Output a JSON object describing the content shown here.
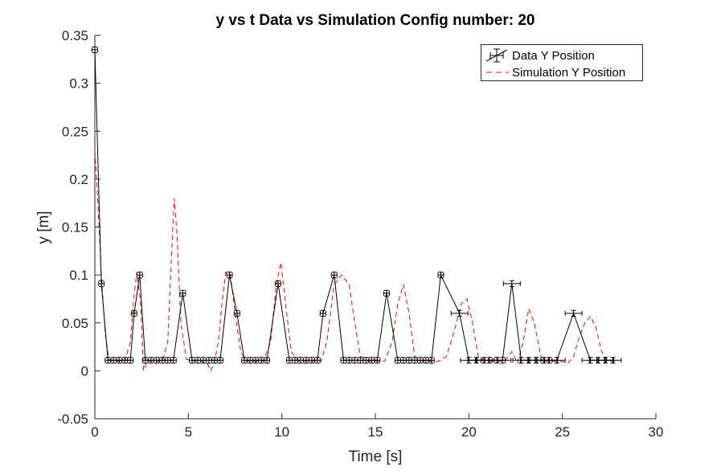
{
  "chart_data": {
    "type": "line",
    "title": "y vs t Data vs Simulation Config number: 20",
    "xlabel": "Time [s]",
    "ylabel": "y [m]",
    "xlim": [
      0,
      30
    ],
    "ylim": [
      -0.05,
      0.35
    ],
    "xticks": [
      0,
      5,
      10,
      15,
      20,
      25,
      30
    ],
    "xtick_labels": [
      "0",
      "5",
      "10",
      "15",
      "20",
      "25",
      "30"
    ],
    "yticks": [
      -0.05,
      0,
      0.05,
      0.1,
      0.15,
      0.2,
      0.25,
      0.3,
      0.35
    ],
    "ytick_labels": [
      "-0.05",
      "0",
      "0.05",
      "0.1",
      "0.15",
      "0.2",
      "0.25",
      "0.3",
      "0.35"
    ],
    "grid": false,
    "legend_position": "top-right",
    "series": [
      {
        "name": "Data Y Position",
        "style": "solid line with error bars",
        "color": "#000000",
        "x": [
          0.0,
          0.35,
          0.7,
          1.0,
          1.3,
          1.6,
          1.9,
          2.1,
          2.4,
          2.7,
          3.0,
          3.3,
          3.6,
          3.9,
          4.2,
          4.7,
          5.2,
          5.5,
          5.8,
          6.1,
          6.4,
          6.7,
          7.2,
          7.6,
          8.0,
          8.3,
          8.6,
          8.9,
          9.2,
          9.8,
          10.4,
          10.7,
          11.0,
          11.3,
          11.6,
          11.9,
          12.2,
          12.8,
          13.3,
          13.6,
          13.9,
          14.2,
          14.5,
          14.8,
          15.1,
          15.6,
          16.2,
          16.5,
          16.8,
          17.1,
          17.4,
          17.7,
          18.0,
          18.5,
          19.5,
          20.0,
          20.4,
          20.8,
          21.1,
          21.5,
          21.8,
          22.3,
          22.8,
          23.2,
          23.6,
          24.0,
          24.3,
          24.7,
          25.6,
          26.5,
          26.9,
          27.3,
          27.7
        ],
        "y": [
          0.335,
          0.091,
          0.011,
          0.011,
          0.011,
          0.011,
          0.011,
          0.06,
          0.1,
          0.011,
          0.011,
          0.011,
          0.011,
          0.011,
          0.011,
          0.081,
          0.011,
          0.011,
          0.011,
          0.011,
          0.011,
          0.011,
          0.1,
          0.06,
          0.011,
          0.011,
          0.011,
          0.011,
          0.011,
          0.091,
          0.011,
          0.011,
          0.011,
          0.011,
          0.011,
          0.011,
          0.06,
          0.1,
          0.011,
          0.011,
          0.011,
          0.011,
          0.011,
          0.011,
          0.011,
          0.081,
          0.011,
          0.011,
          0.011,
          0.011,
          0.011,
          0.011,
          0.011,
          0.1,
          0.06,
          0.011,
          0.011,
          0.011,
          0.011,
          0.011,
          0.011,
          0.091,
          0.011,
          0.011,
          0.011,
          0.011,
          0.011,
          0.011,
          0.06,
          0.011,
          0.011,
          0.011,
          0.011
        ],
        "xerr": [
          0.15,
          0.15,
          0.15,
          0.15,
          0.15,
          0.15,
          0.15,
          0.15,
          0.15,
          0.15,
          0.15,
          0.15,
          0.15,
          0.15,
          0.15,
          0.15,
          0.15,
          0.15,
          0.15,
          0.15,
          0.15,
          0.15,
          0.15,
          0.15,
          0.15,
          0.15,
          0.15,
          0.15,
          0.15,
          0.15,
          0.15,
          0.15,
          0.15,
          0.15,
          0.15,
          0.15,
          0.15,
          0.15,
          0.15,
          0.15,
          0.15,
          0.15,
          0.15,
          0.15,
          0.15,
          0.15,
          0.15,
          0.15,
          0.15,
          0.15,
          0.15,
          0.15,
          0.15,
          0.15,
          0.45,
          0.45,
          0.45,
          0.45,
          0.45,
          0.45,
          0.45,
          0.45,
          0.45,
          0.45,
          0.45,
          0.45,
          0.45,
          0.45,
          0.45,
          0.45,
          0.45,
          0.45,
          0.45
        ],
        "yerr": [
          0.003,
          0.003,
          0.003,
          0.003,
          0.003,
          0.003,
          0.003,
          0.003,
          0.003,
          0.003,
          0.003,
          0.003,
          0.003,
          0.003,
          0.003,
          0.003,
          0.003,
          0.003,
          0.003,
          0.003,
          0.003,
          0.003,
          0.003,
          0.003,
          0.003,
          0.003,
          0.003,
          0.003,
          0.003,
          0.003,
          0.003,
          0.003,
          0.003,
          0.003,
          0.003,
          0.003,
          0.003,
          0.003,
          0.003,
          0.003,
          0.003,
          0.003,
          0.003,
          0.003,
          0.003,
          0.003,
          0.003,
          0.003,
          0.003,
          0.003,
          0.003,
          0.003,
          0.003,
          0.003,
          0.003,
          0.003,
          0.003,
          0.003,
          0.003,
          0.003,
          0.003,
          0.003,
          0.003,
          0.003,
          0.003,
          0.003,
          0.003,
          0.003,
          0.003,
          0.003,
          0.003,
          0.003,
          0.003
        ]
      },
      {
        "name": "Simulation Y Position",
        "style": "dashed line",
        "color": "#ff0000",
        "x": [
          0.0,
          0.15,
          0.35,
          0.55,
          0.75,
          1.0,
          1.3,
          1.6,
          1.9,
          2.1,
          2.25,
          2.45,
          2.6,
          2.8,
          3.2,
          3.6,
          3.9,
          4.1,
          4.25,
          4.4,
          4.6,
          4.9,
          5.3,
          5.7,
          6.0,
          6.2,
          6.4,
          6.6,
          6.8,
          7.0,
          7.25,
          7.5,
          7.8,
          8.1,
          8.5,
          9.0,
          9.4,
          9.7,
          9.95,
          10.2,
          10.5,
          10.9,
          11.3,
          11.7,
          12.1,
          12.4,
          12.8,
          13.2,
          13.6,
          13.9,
          14.2,
          14.6,
          15.0,
          15.5,
          15.9,
          16.2,
          16.5,
          16.8,
          17.1,
          17.5,
          18.0,
          18.4,
          18.8,
          19.2,
          19.6,
          19.9,
          20.2,
          20.5,
          20.9,
          21.4,
          21.9,
          22.3,
          22.6,
          22.9,
          23.2,
          23.5,
          23.9,
          24.4,
          24.9,
          25.3,
          25.6,
          25.9,
          26.2,
          26.5,
          26.8,
          27.1,
          27.4,
          27.8
        ],
        "y": [
          0.23,
          0.18,
          0.1,
          0.04,
          0.012,
          0.01,
          0.01,
          0.01,
          0.03,
          0.08,
          0.103,
          0.07,
          0.0,
          0.01,
          0.01,
          0.01,
          0.03,
          0.12,
          0.18,
          0.14,
          0.05,
          0.012,
          0.01,
          0.01,
          0.008,
          0.0,
          0.01,
          0.03,
          0.07,
          0.103,
          0.1,
          0.06,
          0.02,
          0.01,
          0.01,
          0.01,
          0.03,
          0.09,
          0.113,
          0.07,
          0.02,
          0.01,
          0.01,
          0.01,
          0.01,
          0.03,
          0.09,
          0.1,
          0.09,
          0.05,
          0.015,
          0.01,
          0.01,
          0.01,
          0.03,
          0.07,
          0.09,
          0.06,
          0.015,
          0.01,
          0.01,
          0.01,
          0.015,
          0.04,
          0.07,
          0.075,
          0.05,
          0.015,
          0.01,
          0.01,
          0.01,
          0.02,
          0.008,
          0.03,
          0.065,
          0.05,
          0.01,
          0.01,
          0.01,
          0.008,
          0.015,
          0.035,
          0.05,
          0.057,
          0.045,
          0.02,
          0.01,
          0.01
        ]
      }
    ]
  }
}
